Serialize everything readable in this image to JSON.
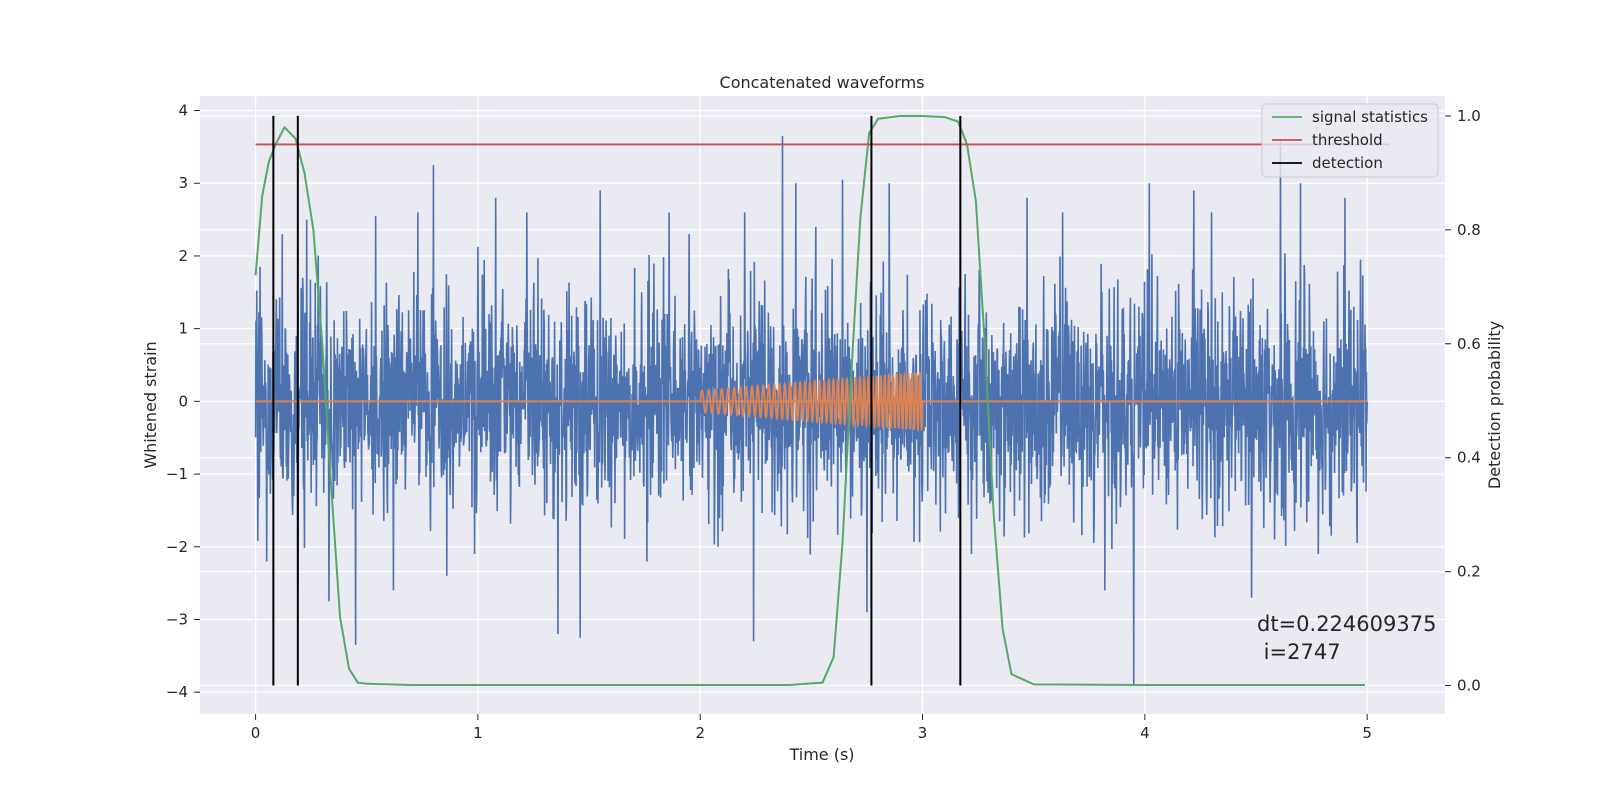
{
  "chart_data": {
    "type": "line",
    "title": "Concatenated waveforms",
    "xlabel": "Time (s)",
    "ylabel": "Whitened strain",
    "y2label": "Detection probability",
    "xlim": [
      -0.25,
      5.35
    ],
    "ylim": [
      -4.3,
      4.2
    ],
    "y2lim": [
      -0.05,
      1.035
    ],
    "x_ticks": [
      0,
      1,
      2,
      3,
      4,
      5
    ],
    "y_ticks": [
      -4,
      -3,
      -2,
      -1,
      0,
      1,
      2,
      3,
      4
    ],
    "y2_ticks": [
      0.0,
      0.2,
      0.4,
      0.6,
      0.8,
      1.0
    ],
    "y2_tick_labels": [
      "0.0",
      "0.2",
      "0.4",
      "0.6",
      "0.8",
      "1.0"
    ],
    "grid": true,
    "legend_position": "top-right",
    "colors": {
      "background": "#eaeaf2",
      "grid": "#ffffff",
      "strain": "#4c72b0",
      "injection": "#dd8452",
      "signal_statistics": "#55a868",
      "threshold": "#c44e52",
      "detection": "#000000"
    },
    "strain_series": {
      "x_range": [
        0,
        5
      ],
      "typical_envelope": 2.0,
      "peaks": [
        {
          "x": 0.02,
          "y": 1.85
        },
        {
          "x": 0.05,
          "y": -2.2
        },
        {
          "x": 0.12,
          "y": 2.3
        },
        {
          "x": 0.19,
          "y": -2.55
        },
        {
          "x": 0.23,
          "y": 2.5
        },
        {
          "x": 0.33,
          "y": -2.75
        },
        {
          "x": 0.45,
          "y": -3.35
        },
        {
          "x": 0.54,
          "y": 2.55
        },
        {
          "x": 0.62,
          "y": -2.6
        },
        {
          "x": 0.73,
          "y": 2.6
        },
        {
          "x": 0.8,
          "y": 3.25
        },
        {
          "x": 0.86,
          "y": -2.4
        },
        {
          "x": 1.08,
          "y": 2.8
        },
        {
          "x": 1.22,
          "y": 2.6
        },
        {
          "x": 1.36,
          "y": -3.2
        },
        {
          "x": 1.46,
          "y": -3.25
        },
        {
          "x": 1.55,
          "y": 2.9
        },
        {
          "x": 1.76,
          "y": -2.2
        },
        {
          "x": 1.86,
          "y": 2.6
        },
        {
          "x": 1.95,
          "y": 2.3
        },
        {
          "x": 2.08,
          "y": -2.0
        },
        {
          "x": 2.2,
          "y": 2.6
        },
        {
          "x": 2.24,
          "y": -3.3
        },
        {
          "x": 2.37,
          "y": 3.65
        },
        {
          "x": 2.43,
          "y": 3.0
        },
        {
          "x": 2.52,
          "y": 2.4
        },
        {
          "x": 2.64,
          "y": 3.05
        },
        {
          "x": 2.75,
          "y": -2.9
        },
        {
          "x": 2.85,
          "y": 3.0
        },
        {
          "x": 3.22,
          "y": -2.1
        },
        {
          "x": 3.47,
          "y": 2.8
        },
        {
          "x": 3.63,
          "y": 2.6
        },
        {
          "x": 3.82,
          "y": -2.6
        },
        {
          "x": 3.95,
          "y": -3.9
        },
        {
          "x": 4.02,
          "y": 3.0
        },
        {
          "x": 4.22,
          "y": 2.9
        },
        {
          "x": 4.3,
          "y": 2.6
        },
        {
          "x": 4.48,
          "y": -2.7
        },
        {
          "x": 4.61,
          "y": 3.6
        },
        {
          "x": 4.7,
          "y": 3.0
        },
        {
          "x": 4.78,
          "y": -2.1
        },
        {
          "x": 4.9,
          "y": 2.8
        },
        {
          "x": 4.97,
          "y": 1.95
        }
      ]
    },
    "injection_series": {
      "baseline_x": [
        0,
        5
      ],
      "chirp_x_range": [
        2.0,
        3.0
      ],
      "amplitude_start": 0.15,
      "amplitude_end": 0.4,
      "cycles": 46
    },
    "signal_statistics": {
      "x": [
        0.0,
        0.03,
        0.06,
        0.09,
        0.13,
        0.18,
        0.22,
        0.26,
        0.3,
        0.34,
        0.38,
        0.42,
        0.46,
        0.5,
        0.7,
        1.0,
        1.5,
        2.0,
        2.4,
        2.55,
        2.6,
        2.64,
        2.68,
        2.72,
        2.76,
        2.8,
        2.9,
        3.0,
        3.1,
        3.16,
        3.2,
        3.24,
        3.28,
        3.32,
        3.36,
        3.4,
        3.5,
        4.0,
        4.5,
        4.99
      ],
      "y": [
        0.72,
        0.86,
        0.92,
        0.95,
        0.98,
        0.96,
        0.9,
        0.8,
        0.6,
        0.35,
        0.12,
        0.03,
        0.005,
        0.003,
        0.001,
        0.001,
        0.001,
        0.001,
        0.001,
        0.005,
        0.05,
        0.25,
        0.55,
        0.82,
        0.97,
        0.995,
        1.0,
        1.0,
        0.998,
        0.99,
        0.95,
        0.85,
        0.6,
        0.3,
        0.1,
        0.02,
        0.002,
        0.001,
        0.001,
        0.001
      ]
    },
    "threshold": {
      "value": 0.95,
      "x_range": [
        0,
        5.1
      ]
    },
    "detections": [
      0.08,
      0.19,
      2.77,
      3.17
    ],
    "detection_y2_range": [
      0.0,
      1.0
    ],
    "series_names": [
      "signal statistics",
      "threshold",
      "detection"
    ],
    "annotation": {
      "line1": "dt=0.224609375",
      "line2": " i=2747"
    }
  }
}
